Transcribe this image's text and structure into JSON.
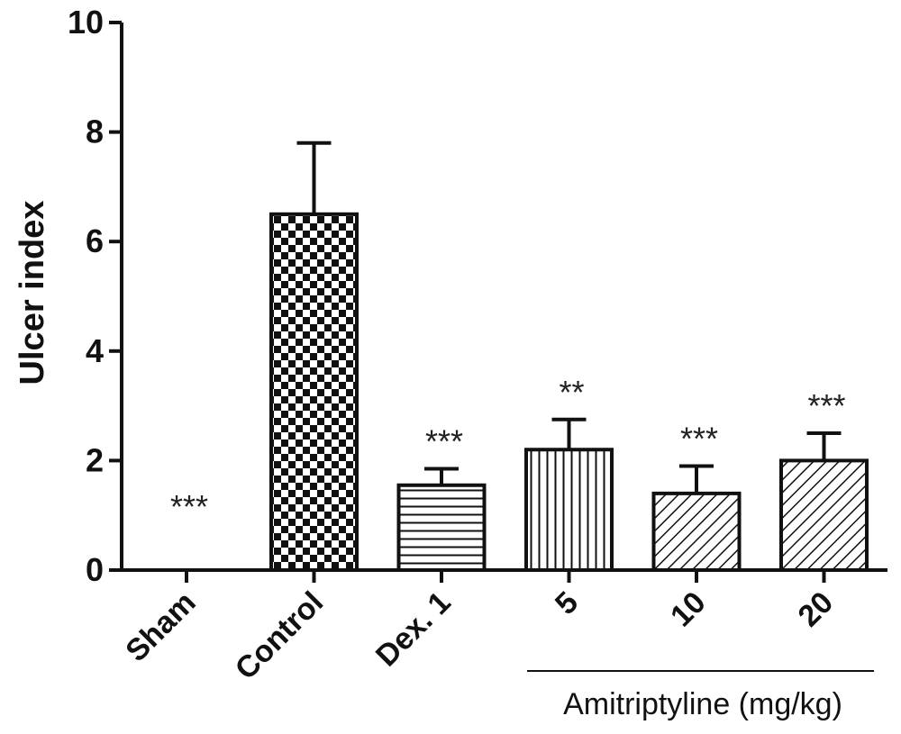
{
  "chart_data": {
    "type": "bar",
    "ylabel": "Ulcer index",
    "ylim": [
      0,
      10
    ],
    "yticks": [
      "0",
      "2",
      "4",
      "6",
      "8",
      "10"
    ],
    "categories": [
      "Sham",
      "Control",
      "Dex. 1",
      "5",
      "10",
      "20"
    ],
    "values": [
      0,
      6.5,
      1.55,
      2.2,
      1.4,
      2.0
    ],
    "errors": [
      0,
      1.3,
      0.3,
      0.55,
      0.5,
      0.5
    ],
    "patterns": [
      "none",
      "checker",
      "horizontal",
      "vertical",
      "diagonal",
      "diagonal"
    ],
    "significance": [
      "***",
      "",
      "***",
      "**",
      "***",
      "***"
    ],
    "group_label": "Amitriptyline (mg/kg)",
    "grid": false,
    "legend": "none"
  }
}
